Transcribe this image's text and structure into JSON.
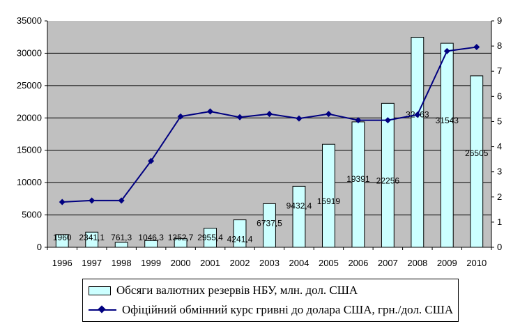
{
  "chart_data": {
    "type": "bar",
    "categories": [
      "1996",
      "1997",
      "1998",
      "1999",
      "2000",
      "2001",
      "2002",
      "2003",
      "2004",
      "2005",
      "2006",
      "2007",
      "2008",
      "2009",
      "2010"
    ],
    "series": [
      {
        "name": "Обсяги валютних резервів НБУ, млн. дол. США",
        "type": "bar",
        "axis": "left",
        "values": [
          1960,
          2341.1,
          761.3,
          1046.3,
          1352.7,
          2955.4,
          4241.4,
          6737.5,
          9432.4,
          15919,
          19391,
          22256,
          32463,
          31543,
          26505
        ],
        "labels": [
          "1960",
          "2341,1",
          "761,3",
          "1046,3",
          "1352,7",
          "2955,4",
          "4241,4",
          "6737,5",
          "9432,4",
          "15919",
          "19391",
          "22256",
          "32463",
          "31543",
          "26505"
        ]
      },
      {
        "name": "Офіційний обмінний курс гривні до долара США, грн./дол. США",
        "type": "line",
        "axis": "right",
        "values": [
          1.8,
          1.86,
          1.86,
          3.43,
          5.2,
          5.4,
          5.17,
          5.3,
          5.12,
          5.3,
          5.05,
          5.05,
          5.27,
          7.8,
          7.96
        ]
      }
    ],
    "y_left": {
      "ylim": [
        0,
        35000
      ],
      "ticks": [
        "0",
        "5000",
        "10000",
        "15000",
        "20000",
        "25000",
        "30000",
        "35000"
      ]
    },
    "y_right": {
      "ylim": [
        0,
        9
      ],
      "ticks": [
        "0",
        "1",
        "2",
        "3",
        "4",
        "5",
        "6",
        "7",
        "8",
        "9"
      ]
    },
    "colors": {
      "plot_bg": "#c0c0c0",
      "bar_fill": "#ccffff",
      "line": "#000080"
    },
    "grid": "horizontal",
    "legend_position": "bottom"
  }
}
